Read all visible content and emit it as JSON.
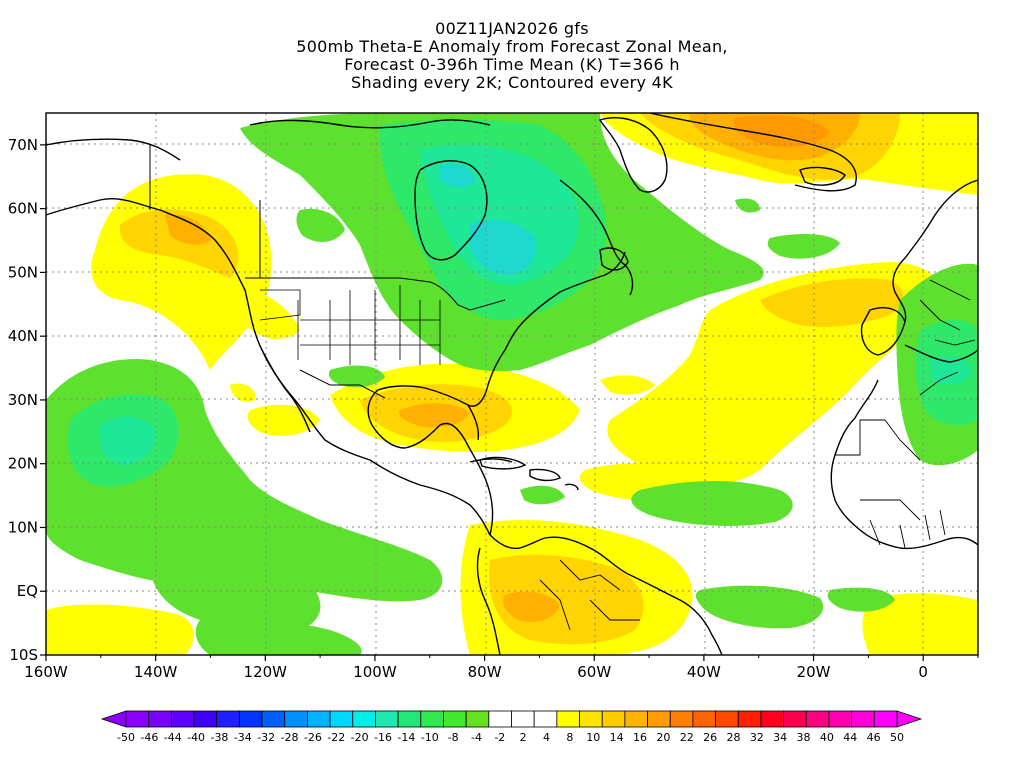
{
  "title": {
    "lines": [
      "00Z11JAN2026 gfs",
      "500mb Theta-E Anomaly from Forecast Zonal Mean,",
      "Forecast 0-396h Time Mean (K) T=366 h",
      "Shading every 2K; Contoured every 4K"
    ]
  },
  "map": {
    "lon_range": [
      -160,
      10
    ],
    "lat_range": [
      -10,
      75
    ],
    "x_ticks": [
      "160W",
      "140W",
      "120W",
      "100W",
      "80W",
      "60W",
      "40W",
      "20W",
      "0"
    ],
    "y_ticks": [
      "10S",
      "EQ",
      "10N",
      "20N",
      "30N",
      "40N",
      "50N",
      "60N",
      "70N"
    ],
    "colors": {
      "green_bright": "#5ee02e",
      "green_medium": "#2ee86a",
      "green_teal": "#1ee898",
      "cyan": "#1ed8d0",
      "yellow": "#ffff00",
      "yellow_orange": "#ffd400",
      "orange": "#ffb000",
      "orange_dark": "#ff9900"
    }
  },
  "colorbar": {
    "labels": [
      "-50",
      "-46",
      "-44",
      "-40",
      "-38",
      "-34",
      "-32",
      "-28",
      "-26",
      "-22",
      "-20",
      "-16",
      "-14",
      "-10",
      "-8",
      "-4",
      "-2",
      "2",
      "4",
      "8",
      "10",
      "14",
      "16",
      "20",
      "22",
      "26",
      "28",
      "32",
      "34",
      "38",
      "40",
      "44",
      "46",
      "50"
    ],
    "colors": [
      "#8c00ff",
      "#7a00ff",
      "#6000ff",
      "#4000ff",
      "#2020ff",
      "#0033ff",
      "#0060ff",
      "#0090ff",
      "#00b4ff",
      "#00d8ff",
      "#00f0e8",
      "#1ee8b0",
      "#1ee878",
      "#30e850",
      "#44e830",
      "#66e020",
      "#ffffff",
      "#ffffff",
      "#ffffff",
      "#ffff00",
      "#ffe400",
      "#ffcc00",
      "#ffb400",
      "#ff9c00",
      "#ff8000",
      "#ff6400",
      "#ff4800",
      "#ff2000",
      "#ff0020",
      "#ff0050",
      "#ff0080",
      "#ff00b0",
      "#ff00d8",
      "#ff00ff"
    ]
  }
}
